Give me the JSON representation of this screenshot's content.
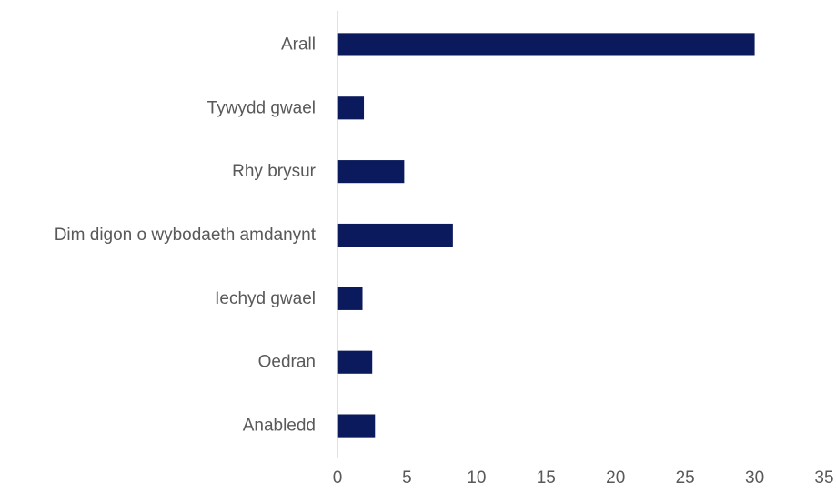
{
  "chart_data": {
    "type": "bar",
    "orientation": "horizontal",
    "categories": [
      "Arall",
      "Tywydd gwael",
      "Rhy brysur",
      "Dim digon o wybodaeth amdanynt",
      "Iechyd gwael",
      "Oedran",
      "Anabledd"
    ],
    "values": [
      30,
      1.9,
      4.8,
      8.3,
      1.8,
      2.5,
      2.7
    ],
    "title": "",
    "xlabel": "",
    "ylabel": "",
    "xlim": [
      0,
      35
    ],
    "xticks": [
      0,
      5,
      10,
      15,
      20,
      25,
      30,
      35
    ],
    "xtick_labels": [
      "0",
      "5",
      "10",
      "15",
      "20",
      "25",
      "30",
      "35"
    ],
    "bar_color": "#0b1a5c",
    "axis_color": "#d9d9d9",
    "label_color": "#595959",
    "grid": false,
    "legend": "none"
  }
}
